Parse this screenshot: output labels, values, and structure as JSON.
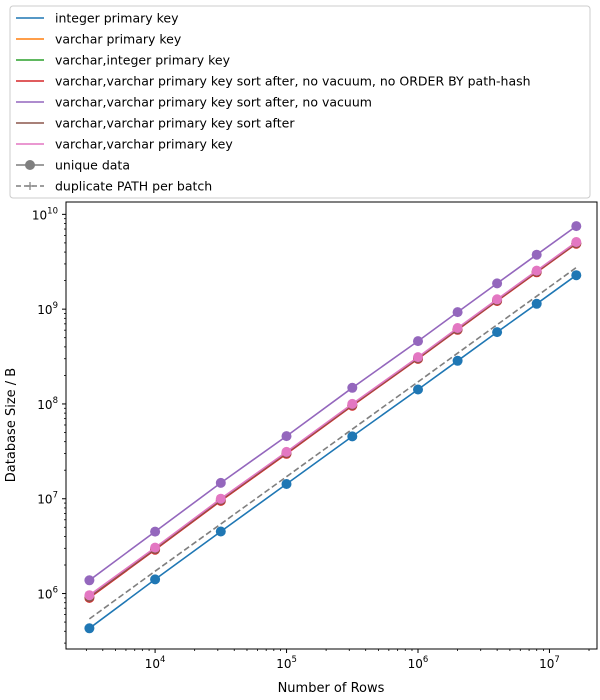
{
  "chart_data": {
    "type": "line",
    "title": "",
    "xlabel": "Number of Rows",
    "ylabel": "Database Size / B",
    "xscale": "log",
    "yscale": "log",
    "xlim": [
      2100,
      23000000
    ],
    "ylim": [
      260000,
      13500000000
    ],
    "grid": false,
    "legend_position": "top (above axes)",
    "x_ticks": [
      {
        "value": 10000,
        "base": "10",
        "exp": "4"
      },
      {
        "value": 100000,
        "base": "10",
        "exp": "5"
      },
      {
        "value": 1000000,
        "base": "10",
        "exp": "6"
      },
      {
        "value": 10000000,
        "base": "10",
        "exp": "7"
      }
    ],
    "y_ticks": [
      {
        "value": 1000000,
        "base": "10",
        "exp": "6"
      },
      {
        "value": 10000000,
        "base": "10",
        "exp": "7"
      },
      {
        "value": 100000000,
        "base": "10",
        "exp": "8"
      },
      {
        "value": 1000000000,
        "base": "10",
        "exp": "9"
      },
      {
        "value": 10000000000,
        "base": "10",
        "exp": "10"
      }
    ],
    "x": [
      3162,
      10000,
      31623,
      100000,
      316228,
      1000000,
      2000000,
      4000000,
      8000000,
      16000000
    ],
    "series": [
      {
        "name": "varchar,varchar primary key sort after, no vacuum",
        "color": "#9467bd",
        "style": "unique",
        "values": [
          1380000,
          4500000,
          14700000,
          45800000,
          148000000,
          460000000,
          930000000,
          1870000000,
          3750000000,
          7520000000
        ]
      },
      {
        "name": "varchar,varchar primary key sort after, no vacuum, no ORDER BY path-hash",
        "color": "#d62728",
        "style": "unique",
        "values": [
          900000,
          2900000,
          9500000,
          29800000,
          95800000,
          299000000,
          605000000,
          1220000000,
          2450000000,
          4900000000
        ]
      },
      {
        "name": "varchar,varchar primary key sort after",
        "color": "#8c564b",
        "style": "unique",
        "values": [
          920000,
          2950000,
          9700000,
          30400000,
          97500000,
          304000000,
          615000000,
          1240000000,
          2490000000,
          4980000000
        ]
      },
      {
        "name": "varchar,varchar primary key",
        "color": "#e377c2",
        "style": "unique",
        "values": [
          960000,
          3050000,
          10000000,
          31200000,
          100000000,
          312000000,
          633000000,
          1270000000,
          2550000000,
          5110000000
        ]
      },
      {
        "name": "integer primary key",
        "color": "#1f77b4",
        "style": "unique",
        "values": [
          430000,
          1410000,
          4510000,
          14300000,
          45500000,
          142000000,
          285000000,
          572000000,
          1140000000,
          2280000000
        ]
      },
      {
        "name": "duplicate PATH per batch",
        "color": "#7f7f7f",
        "style": "duplicate",
        "values": [
          540000,
          1720000,
          5420000,
          17100000,
          54200000,
          171000000,
          343000000,
          686000000,
          1370000000,
          2750000000
        ]
      }
    ],
    "legend": [
      {
        "label": "integer primary key",
        "color": "#1f77b4",
        "style": "plain"
      },
      {
        "label": "varchar primary key",
        "color": "#ff7f0e",
        "style": "plain"
      },
      {
        "label": "varchar,integer primary key",
        "color": "#2ca02c",
        "style": "plain"
      },
      {
        "label": "varchar,varchar primary key sort after, no vacuum, no ORDER BY path-hash",
        "color": "#d62728",
        "style": "plain"
      },
      {
        "label": "varchar,varchar primary key sort after, no vacuum",
        "color": "#9467bd",
        "style": "plain"
      },
      {
        "label": "varchar,varchar primary key sort after",
        "color": "#8c564b",
        "style": "plain"
      },
      {
        "label": "varchar,varchar primary key",
        "color": "#e377c2",
        "style": "plain"
      },
      {
        "label": "unique data",
        "color": "#7f7f7f",
        "style": "unique"
      },
      {
        "label": "duplicate PATH per batch",
        "color": "#7f7f7f",
        "style": "duplicate"
      }
    ]
  }
}
